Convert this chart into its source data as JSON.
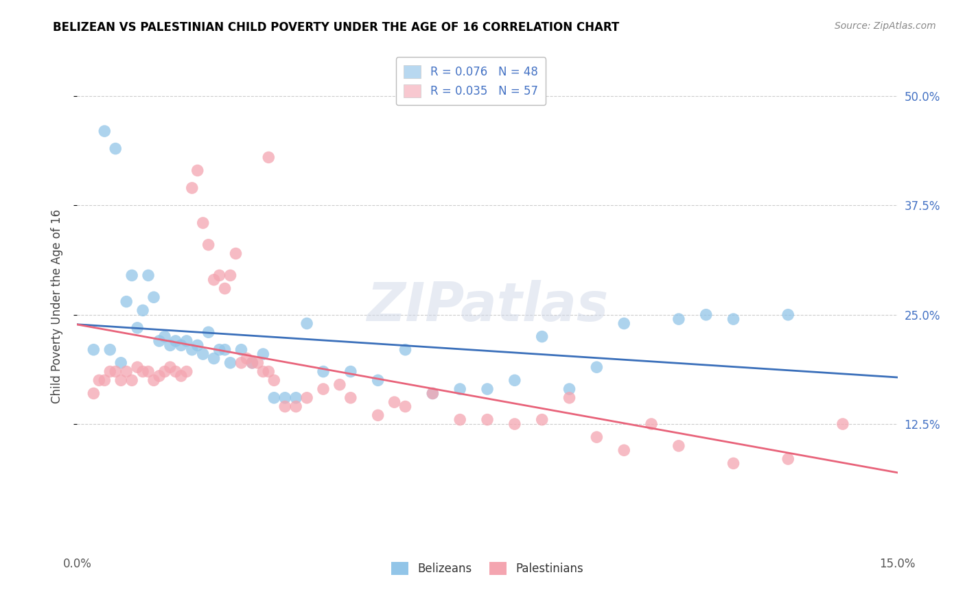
{
  "title": "BELIZEAN VS PALESTINIAN CHILD POVERTY UNDER THE AGE OF 16 CORRELATION CHART",
  "source": "Source: ZipAtlas.com",
  "ylabel": "Child Poverty Under the Age of 16",
  "xlim": [
    0.0,
    0.15
  ],
  "ylim": [
    -0.02,
    0.54
  ],
  "ytick_vals": [
    0.125,
    0.25,
    0.375,
    0.5
  ],
  "ytick_labels": [
    "12.5%",
    "25.0%",
    "37.5%",
    "50.0%"
  ],
  "xtick_vals": [
    0.0,
    0.15
  ],
  "xtick_labels": [
    "0.0%",
    "15.0%"
  ],
  "belizean_color": "#92c5e8",
  "palestinian_color": "#f4a5b0",
  "belizean_line_color": "#3a6fba",
  "palestinian_line_color": "#e8637a",
  "legend_box_color_belize": "#b8d8f0",
  "legend_box_color_pal": "#f8c8d0",
  "R_belize": 0.076,
  "N_belize": 48,
  "R_pal": 0.035,
  "N_pal": 57,
  "watermark": "ZIPatlas",
  "belizean_x": [
    0.005,
    0.007,
    0.009,
    0.01,
    0.011,
    0.012,
    0.013,
    0.014,
    0.015,
    0.016,
    0.017,
    0.018,
    0.019,
    0.02,
    0.021,
    0.022,
    0.023,
    0.024,
    0.025,
    0.026,
    0.027,
    0.028,
    0.03,
    0.032,
    0.034,
    0.036,
    0.038,
    0.04,
    0.042,
    0.045,
    0.05,
    0.055,
    0.06,
    0.065,
    0.07,
    0.075,
    0.08,
    0.085,
    0.09,
    0.095,
    0.1,
    0.11,
    0.12,
    0.13,
    0.003,
    0.006,
    0.008,
    0.115
  ],
  "belizean_y": [
    0.46,
    0.44,
    0.265,
    0.295,
    0.235,
    0.255,
    0.295,
    0.27,
    0.22,
    0.225,
    0.215,
    0.22,
    0.215,
    0.22,
    0.21,
    0.215,
    0.205,
    0.23,
    0.2,
    0.21,
    0.21,
    0.195,
    0.21,
    0.195,
    0.205,
    0.155,
    0.155,
    0.155,
    0.24,
    0.185,
    0.185,
    0.175,
    0.21,
    0.16,
    0.165,
    0.165,
    0.175,
    0.225,
    0.165,
    0.19,
    0.24,
    0.245,
    0.245,
    0.25,
    0.21,
    0.21,
    0.195,
    0.25
  ],
  "palestinian_x": [
    0.004,
    0.005,
    0.006,
    0.007,
    0.008,
    0.009,
    0.01,
    0.011,
    0.012,
    0.013,
    0.014,
    0.015,
    0.016,
    0.017,
    0.018,
    0.019,
    0.02,
    0.021,
    0.022,
    0.023,
    0.024,
    0.025,
    0.026,
    0.027,
    0.028,
    0.029,
    0.03,
    0.031,
    0.032,
    0.033,
    0.034,
    0.035,
    0.036,
    0.038,
    0.04,
    0.042,
    0.045,
    0.048,
    0.05,
    0.055,
    0.058,
    0.06,
    0.065,
    0.07,
    0.075,
    0.08,
    0.085,
    0.09,
    0.095,
    0.1,
    0.105,
    0.11,
    0.12,
    0.13,
    0.003,
    0.035,
    0.14
  ],
  "palestinian_y": [
    0.175,
    0.175,
    0.185,
    0.185,
    0.175,
    0.185,
    0.175,
    0.19,
    0.185,
    0.185,
    0.175,
    0.18,
    0.185,
    0.19,
    0.185,
    0.18,
    0.185,
    0.395,
    0.415,
    0.355,
    0.33,
    0.29,
    0.295,
    0.28,
    0.295,
    0.32,
    0.195,
    0.2,
    0.195,
    0.195,
    0.185,
    0.185,
    0.175,
    0.145,
    0.145,
    0.155,
    0.165,
    0.17,
    0.155,
    0.135,
    0.15,
    0.145,
    0.16,
    0.13,
    0.13,
    0.125,
    0.13,
    0.155,
    0.11,
    0.095,
    0.125,
    0.1,
    0.08,
    0.085,
    0.16,
    0.43,
    0.125
  ]
}
